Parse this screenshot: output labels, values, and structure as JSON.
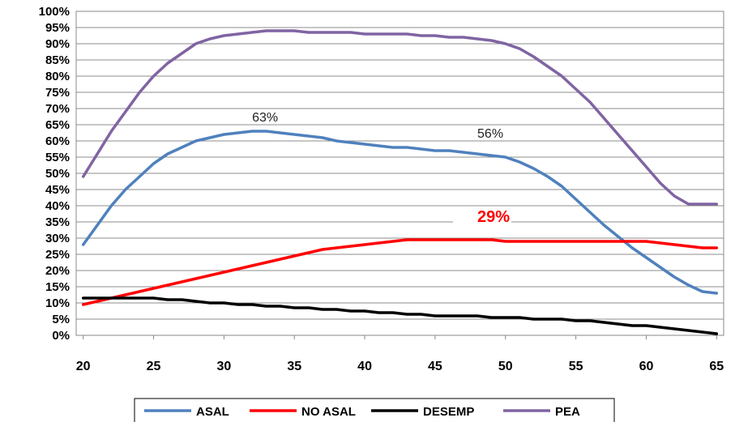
{
  "chart_data": {
    "type": "line",
    "x": [
      20,
      21,
      22,
      23,
      24,
      25,
      26,
      27,
      28,
      29,
      30,
      31,
      32,
      33,
      34,
      35,
      36,
      37,
      38,
      39,
      40,
      41,
      42,
      43,
      44,
      45,
      46,
      47,
      48,
      49,
      50,
      51,
      52,
      53,
      54,
      55,
      56,
      57,
      58,
      59,
      60,
      61,
      62,
      63,
      64,
      65
    ],
    "xticks": [
      20,
      25,
      30,
      35,
      40,
      45,
      50,
      55,
      60,
      65
    ],
    "ylim": [
      0,
      100
    ],
    "yticks": [
      0,
      5,
      10,
      15,
      20,
      25,
      30,
      35,
      40,
      45,
      50,
      55,
      60,
      65,
      70,
      75,
      80,
      85,
      90,
      95,
      100
    ],
    "y_tick_suffix": "%",
    "grid": "horizontal",
    "legend_position": "bottom",
    "series": [
      {
        "name": "ASAL",
        "color": "#4f81bd",
        "values": [
          28,
          34,
          40,
          45,
          49,
          53,
          56,
          58,
          60,
          61,
          62,
          62.5,
          63,
          63,
          62.5,
          62,
          61.5,
          61,
          60,
          59.5,
          59,
          58.5,
          58,
          58,
          57.5,
          57,
          57,
          56.5,
          56,
          55.5,
          55,
          53.5,
          51.5,
          49,
          46,
          42,
          38,
          34,
          30.5,
          27,
          24,
          21,
          18,
          15.5,
          13.5,
          13
        ]
      },
      {
        "name": "NO ASAL",
        "color": "#ff0000",
        "values": [
          9.5,
          10.5,
          11.5,
          12.5,
          13.5,
          14.5,
          15.5,
          16.5,
          17.5,
          18.5,
          19.5,
          20.5,
          21.5,
          22.5,
          23.5,
          24.5,
          25.5,
          26.5,
          27,
          27.5,
          28,
          28.5,
          29,
          29.5,
          29.5,
          29.5,
          29.5,
          29.5,
          29.5,
          29.5,
          29,
          29,
          29,
          29,
          29,
          29,
          29,
          29,
          29,
          29,
          29,
          28.5,
          28,
          27.5,
          27,
          27
        ]
      },
      {
        "name": "DESEMP",
        "color": "#000000",
        "values": [
          11.5,
          11.5,
          11.5,
          11.5,
          11.5,
          11.5,
          11,
          11,
          10.5,
          10,
          10,
          9.5,
          9.5,
          9,
          9,
          8.5,
          8.5,
          8,
          8,
          7.5,
          7.5,
          7,
          7,
          6.5,
          6.5,
          6,
          6,
          6,
          6,
          5.5,
          5.5,
          5.5,
          5,
          5,
          5,
          4.5,
          4.5,
          4,
          3.5,
          3,
          3,
          2.5,
          2,
          1.5,
          1,
          0.5
        ]
      },
      {
        "name": "PEA",
        "color": "#8064a2",
        "values": [
          49,
          56,
          63,
          69,
          75,
          80,
          84,
          87,
          90,
          91.5,
          92.5,
          93,
          93.5,
          94,
          94,
          94,
          93.5,
          93.5,
          93.5,
          93.5,
          93,
          93,
          93,
          93,
          92.5,
          92.5,
          92,
          92,
          91.5,
          91,
          90,
          88.5,
          86,
          83,
          80,
          76,
          72,
          67,
          62,
          57,
          52,
          47,
          43,
          40.5,
          40.5,
          40.5
        ]
      }
    ],
    "annotations": [
      {
        "text": "63%",
        "x": 32,
        "y": 66,
        "style": "normal"
      },
      {
        "text": "56%",
        "x": 48,
        "y": 61,
        "style": "normal"
      },
      {
        "text": "29%",
        "x": 48,
        "y": 35,
        "style": "red-bold"
      }
    ]
  }
}
